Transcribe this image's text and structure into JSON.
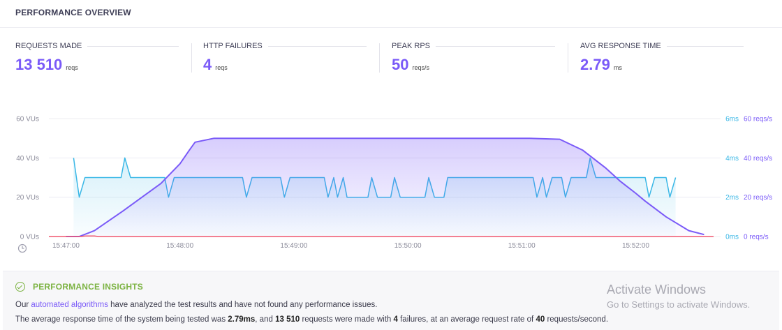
{
  "header": {
    "title": "PERFORMANCE OVERVIEW"
  },
  "metrics": [
    {
      "label": "REQUESTS MADE",
      "value": "13 510",
      "unit": "reqs"
    },
    {
      "label": "HTTP FAILURES",
      "value": "4",
      "unit": "reqs"
    },
    {
      "label": "PEAK RPS",
      "value": "50",
      "unit": "reqs/s"
    },
    {
      "label": "AVG RESPONSE TIME",
      "value": "2.79",
      "unit": "ms"
    }
  ],
  "chart_data": {
    "type": "line",
    "x_ticks": [
      "15:47:00",
      "15:48:00",
      "15:49:00",
      "15:50:00",
      "15:51:00",
      "15:52:00"
    ],
    "left_axis": {
      "ticks": [
        "0 VUs",
        "20 VUs",
        "40 VUs",
        "60 VUs"
      ],
      "ylim": [
        0,
        60
      ]
    },
    "right_axis_ms": {
      "ticks": [
        "0ms",
        "2ms",
        "4ms",
        "6ms"
      ],
      "ylim": [
        0,
        6
      ]
    },
    "right_axis_rps": {
      "ticks": [
        "0 reqs/s",
        "20 reqs/s",
        "40 reqs/s",
        "60 reqs/s"
      ],
      "ylim": [
        0,
        60
      ]
    },
    "x_range_seconds": [
      -9,
      341
    ],
    "series": [
      {
        "key": "vus",
        "color": "#7a5af8",
        "t": [
          0,
          7,
          15,
          30,
          50,
          60,
          65,
          68,
          78,
          100,
          180,
          232,
          244,
          260,
          272,
          284,
          292,
          300,
          305,
          316,
          328,
          336
        ],
        "values": [
          0,
          0,
          3,
          13,
          27,
          37,
          44,
          48,
          50,
          50,
          50,
          50,
          50,
          49.5,
          44,
          35,
          28,
          22,
          18,
          10,
          3,
          1
        ]
      },
      {
        "key": "resp_ms",
        "color": "#39b7e6",
        "t": [
          4,
          7,
          10,
          29,
          31,
          34,
          52,
          54,
          57,
          93,
          95,
          98,
          113,
          115,
          118,
          136,
          138,
          141,
          143,
          146,
          148,
          151,
          159,
          161,
          164,
          171,
          173,
          176,
          189,
          191,
          194,
          199,
          201,
          204,
          246,
          248,
          251,
          253,
          256,
          261,
          263,
          266,
          274,
          276,
          279,
          305,
          307,
          310,
          316,
          318,
          321
        ],
        "values": [
          4,
          2,
          3,
          3,
          4,
          3,
          3,
          2,
          3,
          3,
          2,
          3,
          3,
          2,
          3,
          3,
          2,
          3,
          2,
          3,
          2,
          2,
          2,
          3,
          2,
          2,
          3,
          2,
          2,
          3,
          2,
          2,
          3,
          3,
          3,
          2,
          3,
          2,
          3,
          3,
          2,
          3,
          3,
          4,
          3,
          3,
          2,
          3,
          3,
          2,
          3
        ]
      },
      {
        "key": "failures",
        "color": "#f0566e",
        "t": [
          -9,
          8,
          10,
          15,
          17,
          341
        ],
        "values": [
          0,
          0,
          0.25,
          0.25,
          0,
          0
        ]
      }
    ]
  },
  "insights": {
    "title": "PERFORMANCE INSIGHTS",
    "l1_pre": "Our ",
    "l1_link": "automated algorithms",
    "l1_post": " have analyzed the test results and have not found any performance issues.",
    "l2_a": "The average response time of the system being tested was ",
    "l2_b": "2.79ms",
    "l2_c": ", and ",
    "l2_d": "13 510",
    "l2_e": " requests were made with ",
    "l2_f": "4",
    "l2_g": " failures, at an average request rate of ",
    "l2_h": "40",
    "l2_i": " requests/second."
  },
  "watermark": {
    "title": "Activate Windows",
    "subtitle": "Go to Settings to activate Windows."
  }
}
